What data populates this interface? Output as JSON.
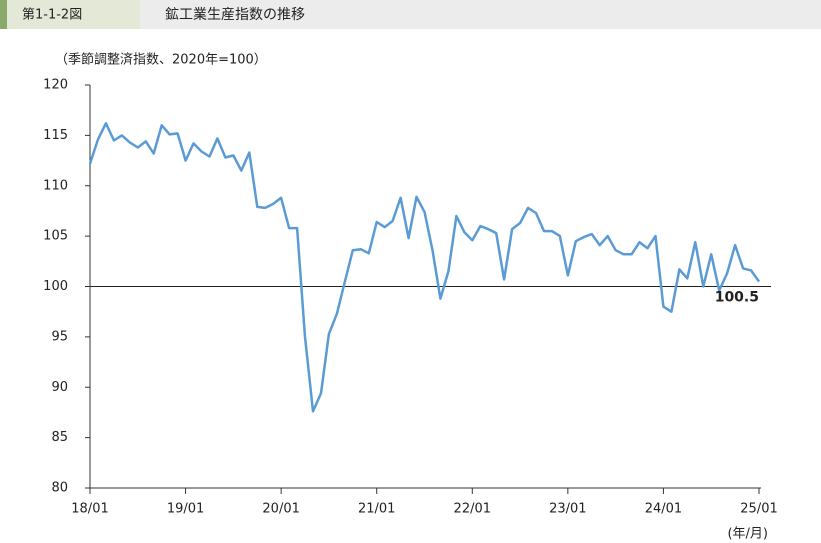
{
  "header": {
    "figure_number": "第1-1-2図",
    "title": "鉱工業生産指数の推移"
  },
  "chart_data": {
    "type": "line",
    "y_label": "（季節調整済指数、2020年=100）",
    "x_label": "(年/月)",
    "categories": [
      "18/01",
      null,
      null,
      null,
      null,
      null,
      null,
      null,
      null,
      null,
      null,
      null,
      "19/01",
      null,
      null,
      null,
      null,
      null,
      null,
      null,
      null,
      null,
      null,
      null,
      "20/01",
      null,
      null,
      null,
      null,
      null,
      null,
      null,
      null,
      null,
      null,
      null,
      "21/01",
      null,
      null,
      null,
      null,
      null,
      null,
      null,
      null,
      null,
      null,
      null,
      "22/01",
      null,
      null,
      null,
      null,
      null,
      null,
      null,
      null,
      null,
      null,
      null,
      "23/01",
      null,
      null,
      null,
      null,
      null,
      null,
      null,
      null,
      null,
      null,
      null,
      "24/01",
      null,
      null,
      null,
      null,
      null,
      null,
      null,
      null,
      null,
      null,
      null,
      "25/01"
    ],
    "series": [
      {
        "name": "鉱工業生産指数",
        "color": "#5b9bd5",
        "values": [
          112.2,
          114.6,
          116.2,
          114.5,
          115.0,
          114.3,
          113.8,
          114.4,
          113.2,
          116.0,
          115.1,
          115.2,
          112.5,
          114.2,
          113.4,
          112.9,
          114.7,
          112.8,
          113.0,
          111.5,
          113.3,
          107.9,
          107.8,
          108.2,
          108.8,
          105.8,
          105.8,
          95.0,
          87.6,
          89.4,
          95.3,
          97.3,
          100.5,
          103.6,
          103.7,
          103.3,
          106.4,
          105.9,
          106.5,
          108.8,
          104.8,
          108.9,
          107.4,
          103.6,
          98.8,
          101.5,
          107.0,
          105.4,
          104.6,
          106.0,
          105.7,
          105.3,
          100.7,
          105.7,
          106.3,
          107.8,
          107.3,
          105.5,
          105.5,
          105.0,
          101.1,
          104.5,
          104.9,
          105.2,
          104.1,
          105.0,
          103.6,
          103.2,
          103.2,
          104.4,
          103.8,
          105.0,
          98.0,
          97.5,
          101.7,
          100.8,
          104.4,
          100.0,
          103.2,
          99.6,
          101.3,
          104.1,
          101.8,
          101.6,
          100.5
        ]
      }
    ],
    "ylim": [
      80,
      120
    ],
    "yticks": [
      80,
      85,
      90,
      95,
      100,
      105,
      110,
      115,
      120
    ],
    "reference_line": 100,
    "grid": false
  }
}
